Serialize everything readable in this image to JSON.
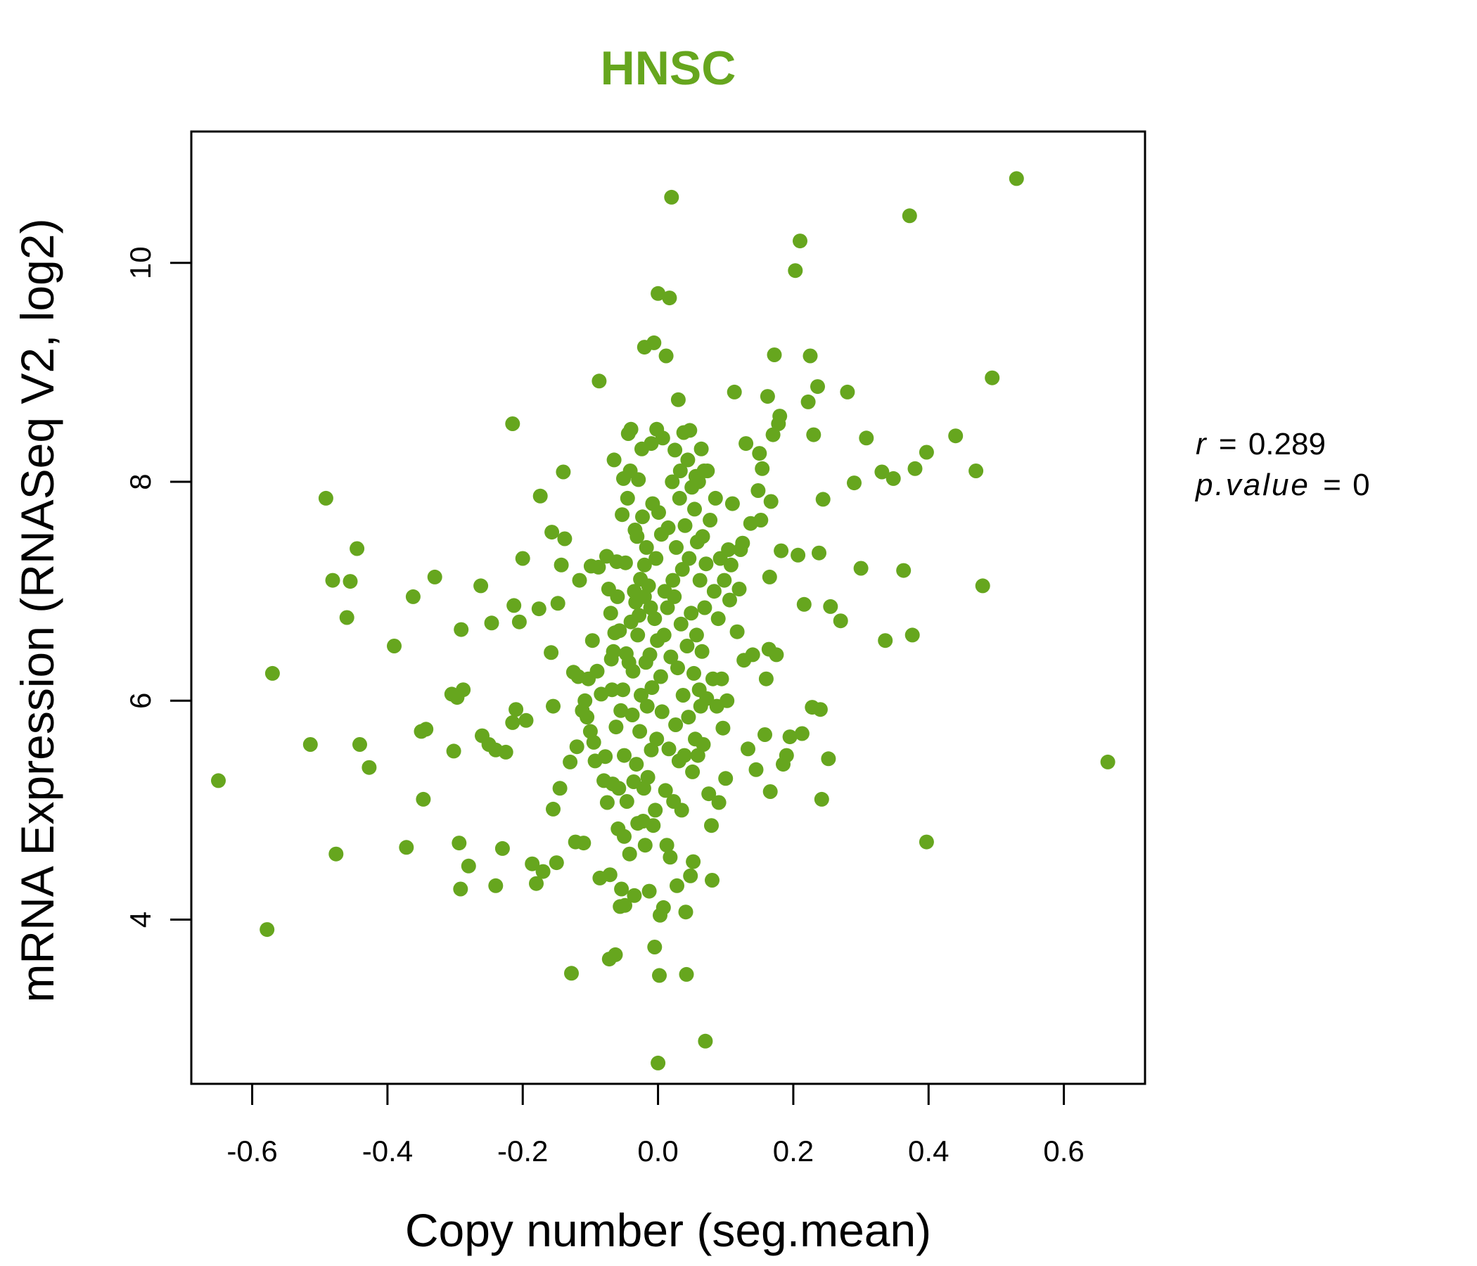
{
  "colors": {
    "accent": "#66A61E",
    "axis": "#000000",
    "background": "#ffffff"
  },
  "stats": {
    "r_label": "r",
    "r_value": "0.289",
    "p_label": "p.value",
    "p_value": "0",
    "eq": "="
  },
  "chart_data": {
    "type": "scatter",
    "title": "HNSC",
    "xlabel": "Copy number (seg.mean)",
    "ylabel": "mRNA Expression (RNASeq V2, log2)",
    "xlim": [
      -0.69,
      0.72
    ],
    "ylim": [
      2.5,
      11.2
    ],
    "xticks": [
      -0.6,
      -0.4,
      -0.2,
      0.0,
      0.2,
      0.4,
      0.6
    ],
    "xtick_labels": [
      "-0.6",
      "-0.4",
      "-0.2",
      "0.0",
      "0.2",
      "0.4",
      "0.6"
    ],
    "yticks": [
      4,
      6,
      8,
      10
    ],
    "ytick_labels": [
      "4",
      "6",
      "8",
      "10"
    ],
    "grid": false,
    "points": [
      [
        -0.65,
        5.27
      ],
      [
        -0.578,
        3.91
      ],
      [
        -0.57,
        6.25
      ],
      [
        -0.514,
        5.6
      ],
      [
        -0.491,
        7.85
      ],
      [
        -0.481,
        7.1
      ],
      [
        -0.476,
        4.6
      ],
      [
        -0.46,
        6.76
      ],
      [
        -0.455,
        7.09
      ],
      [
        -0.445,
        7.39
      ],
      [
        -0.441,
        5.6
      ],
      [
        -0.427,
        5.39
      ],
      [
        -0.39,
        6.5
      ],
      [
        -0.372,
        4.66
      ],
      [
        -0.362,
        6.95
      ],
      [
        -0.35,
        5.72
      ],
      [
        -0.347,
        5.1
      ],
      [
        -0.343,
        5.74
      ],
      [
        -0.33,
        7.13
      ],
      [
        -0.305,
        6.06
      ],
      [
        -0.302,
        5.54
      ],
      [
        -0.297,
        6.03
      ],
      [
        -0.294,
        4.7
      ],
      [
        -0.292,
        4.28
      ],
      [
        -0.291,
        6.65
      ],
      [
        -0.288,
        6.1
      ],
      [
        -0.28,
        4.49
      ],
      [
        -0.262,
        7.05
      ],
      [
        -0.26,
        5.68
      ],
      [
        -0.25,
        5.6
      ],
      [
        -0.246,
        6.71
      ],
      [
        -0.24,
        5.55
      ],
      [
        -0.24,
        4.31
      ],
      [
        -0.23,
        4.65
      ],
      [
        -0.225,
        5.53
      ],
      [
        -0.215,
        8.53
      ],
      [
        -0.215,
        5.8
      ],
      [
        -0.213,
        6.87
      ],
      [
        -0.21,
        5.92
      ],
      [
        -0.205,
        6.72
      ],
      [
        -0.2,
        7.3
      ],
      [
        -0.195,
        5.82
      ],
      [
        -0.186,
        4.51
      ],
      [
        -0.18,
        4.33
      ],
      [
        -0.176,
        6.84
      ],
      [
        -0.174,
        7.87
      ],
      [
        -0.17,
        4.44
      ],
      [
        -0.158,
        6.44
      ],
      [
        -0.157,
        7.54
      ],
      [
        -0.155,
        5.95
      ],
      [
        -0.155,
        5.01
      ],
      [
        -0.15,
        4.52
      ],
      [
        -0.148,
        6.89
      ],
      [
        -0.145,
        5.2
      ],
      [
        -0.143,
        7.24
      ],
      [
        -0.14,
        8.09
      ],
      [
        -0.138,
        7.48
      ],
      [
        -0.13,
        5.44
      ],
      [
        -0.128,
        3.51
      ],
      [
        -0.125,
        6.26
      ],
      [
        -0.122,
        4.71
      ],
      [
        -0.12,
        5.58
      ],
      [
        -0.118,
        6.22
      ],
      [
        -0.116,
        7.1
      ],
      [
        -0.112,
        5.91
      ],
      [
        -0.11,
        4.7
      ],
      [
        -0.108,
        6.0
      ],
      [
        -0.105,
        5.85
      ],
      [
        -0.103,
        6.2
      ],
      [
        -0.1,
        5.72
      ],
      [
        -0.099,
        7.23
      ],
      [
        -0.097,
        6.55
      ],
      [
        -0.095,
        5.62
      ],
      [
        -0.093,
        5.45
      ],
      [
        -0.09,
        6.27
      ],
      [
        -0.088,
        7.22
      ],
      [
        -0.087,
        8.92
      ],
      [
        -0.086,
        4.38
      ],
      [
        -0.084,
        6.06
      ],
      [
        -0.08,
        5.27
      ],
      [
        -0.078,
        5.49
      ],
      [
        -0.076,
        7.32
      ],
      [
        -0.075,
        5.07
      ],
      [
        -0.073,
        7.02
      ],
      [
        -0.072,
        3.64
      ],
      [
        -0.071,
        4.41
      ],
      [
        -0.07,
        6.8
      ],
      [
        -0.069,
        6.38
      ],
      [
        -0.068,
        6.1
      ],
      [
        -0.067,
        5.24
      ],
      [
        -0.066,
        6.45
      ],
      [
        -0.065,
        8.2
      ],
      [
        -0.064,
        6.62
      ],
      [
        -0.063,
        3.68
      ],
      [
        -0.062,
        5.76
      ],
      [
        -0.061,
        7.27
      ],
      [
        -0.06,
        6.95
      ],
      [
        -0.059,
        4.83
      ],
      [
        -0.058,
        5.2
      ],
      [
        -0.057,
        6.64
      ],
      [
        -0.056,
        4.12
      ],
      [
        -0.055,
        5.91
      ],
      [
        -0.054,
        4.28
      ],
      [
        -0.053,
        7.7
      ],
      [
        -0.052,
        6.1
      ],
      [
        -0.051,
        8.03
      ],
      [
        -0.05,
        5.5
      ],
      [
        -0.05,
        4.76
      ],
      [
        -0.049,
        4.13
      ],
      [
        -0.048,
        7.26
      ],
      [
        -0.047,
        6.43
      ],
      [
        -0.046,
        5.08
      ],
      [
        -0.045,
        7.85
      ],
      [
        -0.044,
        8.44
      ],
      [
        -0.043,
        6.35
      ],
      [
        -0.042,
        4.6
      ],
      [
        -0.041,
        8.1
      ],
      [
        -0.04,
        8.48
      ],
      [
        -0.04,
        6.72
      ],
      [
        -0.038,
        5.87
      ],
      [
        -0.037,
        6.27
      ],
      [
        -0.036,
        5.26
      ],
      [
        -0.035,
        4.22
      ],
      [
        -0.035,
        7.0
      ],
      [
        -0.034,
        7.56
      ],
      [
        -0.033,
        6.9
      ],
      [
        -0.032,
        5.42
      ],
      [
        -0.031,
        7.5
      ],
      [
        -0.03,
        6.6
      ],
      [
        -0.03,
        4.88
      ],
      [
        -0.029,
        8.02
      ],
      [
        -0.028,
        6.78
      ],
      [
        -0.027,
        5.72
      ],
      [
        -0.026,
        7.11
      ],
      [
        -0.025,
        6.05
      ],
      [
        -0.024,
        8.3
      ],
      [
        -0.023,
        7.68
      ],
      [
        -0.022,
        4.9
      ],
      [
        -0.021,
        5.2
      ],
      [
        -0.02,
        9.23
      ],
      [
        -0.02,
        7.24
      ],
      [
        -0.02,
        6.95
      ],
      [
        -0.019,
        4.68
      ],
      [
        -0.018,
        6.35
      ],
      [
        -0.017,
        7.4
      ],
      [
        -0.016,
        5.95
      ],
      [
        -0.015,
        5.3
      ],
      [
        -0.014,
        7.05
      ],
      [
        -0.013,
        4.26
      ],
      [
        -0.012,
        6.42
      ],
      [
        -0.011,
        6.85
      ],
      [
        -0.01,
        8.35
      ],
      [
        -0.01,
        5.55
      ],
      [
        -0.009,
        6.12
      ],
      [
        -0.008,
        7.8
      ],
      [
        -0.007,
        4.86
      ],
      [
        -0.006,
        9.27
      ],
      [
        -0.005,
        6.75
      ],
      [
        -0.005,
        3.75
      ],
      [
        -0.004,
        5.0
      ],
      [
        -0.003,
        7.3
      ],
      [
        -0.002,
        8.48
      ],
      [
        -0.002,
        5.65
      ],
      [
        -0.001,
        6.55
      ],
      [
        0.0,
        9.72
      ],
      [
        0.0,
        2.69
      ],
      [
        0.001,
        7.72
      ],
      [
        0.002,
        3.49
      ],
      [
        0.003,
        4.04
      ],
      [
        0.004,
        6.22
      ],
      [
        0.005,
        7.52
      ],
      [
        0.006,
        5.9
      ],
      [
        0.007,
        8.4
      ],
      [
        0.008,
        4.11
      ],
      [
        0.009,
        6.6
      ],
      [
        0.01,
        7.0
      ],
      [
        0.011,
        5.18
      ],
      [
        0.012,
        9.15
      ],
      [
        0.013,
        4.68
      ],
      [
        0.014,
        6.85
      ],
      [
        0.015,
        7.58
      ],
      [
        0.016,
        5.56
      ],
      [
        0.017,
        9.68
      ],
      [
        0.018,
        4.57
      ],
      [
        0.019,
        6.4
      ],
      [
        0.02,
        10.6
      ],
      [
        0.021,
        8.0
      ],
      [
        0.022,
        7.1
      ],
      [
        0.023,
        5.08
      ],
      [
        0.024,
        6.95
      ],
      [
        0.025,
        8.29
      ],
      [
        0.026,
        5.78
      ],
      [
        0.027,
        7.4
      ],
      [
        0.028,
        4.31
      ],
      [
        0.029,
        6.3
      ],
      [
        0.03,
        8.75
      ],
      [
        0.031,
        5.45
      ],
      [
        0.032,
        7.85
      ],
      [
        0.033,
        8.1
      ],
      [
        0.034,
        6.7
      ],
      [
        0.035,
        5.0
      ],
      [
        0.036,
        7.2
      ],
      [
        0.037,
        6.05
      ],
      [
        0.038,
        8.45
      ],
      [
        0.039,
        5.5
      ],
      [
        0.04,
        7.6
      ],
      [
        0.041,
        4.07
      ],
      [
        0.042,
        3.5
      ],
      [
        0.043,
        6.5
      ],
      [
        0.044,
        8.2
      ],
      [
        0.045,
        5.85
      ],
      [
        0.046,
        7.3
      ],
      [
        0.047,
        8.47
      ],
      [
        0.048,
        4.4
      ],
      [
        0.049,
        6.8
      ],
      [
        0.05,
        7.95
      ],
      [
        0.051,
        5.35
      ],
      [
        0.052,
        4.53
      ],
      [
        0.053,
        6.25
      ],
      [
        0.054,
        7.75
      ],
      [
        0.055,
        5.65
      ],
      [
        0.056,
        8.05
      ],
      [
        0.057,
        6.6
      ],
      [
        0.058,
        7.45
      ],
      [
        0.059,
        5.5
      ],
      [
        0.06,
        8.0
      ],
      [
        0.061,
        6.1
      ],
      [
        0.062,
        7.1
      ],
      [
        0.063,
        5.95
      ],
      [
        0.064,
        8.3
      ],
      [
        0.065,
        6.45
      ],
      [
        0.066,
        7.5
      ],
      [
        0.067,
        5.6
      ],
      [
        0.068,
        8.1
      ],
      [
        0.069,
        6.85
      ],
      [
        0.07,
        2.89
      ],
      [
        0.071,
        7.25
      ],
      [
        0.072,
        6.02
      ],
      [
        0.073,
        8.1
      ],
      [
        0.075,
        5.15
      ],
      [
        0.077,
        7.65
      ],
      [
        0.079,
        4.86
      ],
      [
        0.08,
        4.36
      ],
      [
        0.081,
        6.2
      ],
      [
        0.083,
        7.0
      ],
      [
        0.085,
        7.85
      ],
      [
        0.087,
        5.95
      ],
      [
        0.089,
        6.75
      ],
      [
        0.09,
        5.07
      ],
      [
        0.092,
        7.3
      ],
      [
        0.094,
        6.2
      ],
      [
        0.096,
        5.75
      ],
      [
        0.098,
        7.1
      ],
      [
        0.1,
        5.29
      ],
      [
        0.102,
        6.0
      ],
      [
        0.104,
        7.38
      ],
      [
        0.106,
        6.92
      ],
      [
        0.108,
        7.24
      ],
      [
        0.11,
        7.8
      ],
      [
        0.113,
        8.82
      ],
      [
        0.117,
        6.63
      ],
      [
        0.12,
        7.02
      ],
      [
        0.122,
        7.38
      ],
      [
        0.125,
        7.44
      ],
      [
        0.127,
        6.37
      ],
      [
        0.13,
        8.35
      ],
      [
        0.133,
        5.56
      ],
      [
        0.137,
        7.62
      ],
      [
        0.14,
        6.42
      ],
      [
        0.145,
        5.37
      ],
      [
        0.148,
        7.92
      ],
      [
        0.15,
        8.26
      ],
      [
        0.152,
        7.65
      ],
      [
        0.154,
        8.12
      ],
      [
        0.158,
        5.69
      ],
      [
        0.16,
        6.2
      ],
      [
        0.162,
        8.78
      ],
      [
        0.164,
        6.47
      ],
      [
        0.165,
        7.13
      ],
      [
        0.166,
        5.17
      ],
      [
        0.167,
        7.82
      ],
      [
        0.17,
        8.43
      ],
      [
        0.172,
        9.16
      ],
      [
        0.175,
        6.42
      ],
      [
        0.178,
        8.53
      ],
      [
        0.18,
        8.6
      ],
      [
        0.182,
        7.37
      ],
      [
        0.185,
        5.42
      ],
      [
        0.19,
        5.5
      ],
      [
        0.195,
        5.67
      ],
      [
        0.203,
        9.93
      ],
      [
        0.207,
        7.33
      ],
      [
        0.21,
        10.2
      ],
      [
        0.213,
        5.7
      ],
      [
        0.216,
        6.88
      ],
      [
        0.222,
        8.73
      ],
      [
        0.225,
        9.15
      ],
      [
        0.228,
        5.94
      ],
      [
        0.23,
        8.43
      ],
      [
        0.236,
        8.87
      ],
      [
        0.238,
        7.35
      ],
      [
        0.24,
        5.92
      ],
      [
        0.242,
        5.1
      ],
      [
        0.244,
        7.84
      ],
      [
        0.252,
        5.47
      ],
      [
        0.255,
        6.86
      ],
      [
        0.27,
        6.73
      ],
      [
        0.28,
        8.82
      ],
      [
        0.29,
        7.99
      ],
      [
        0.3,
        7.21
      ],
      [
        0.308,
        8.4
      ],
      [
        0.331,
        8.09
      ],
      [
        0.336,
        6.55
      ],
      [
        0.348,
        8.03
      ],
      [
        0.363,
        7.19
      ],
      [
        0.372,
        10.43
      ],
      [
        0.376,
        6.6
      ],
      [
        0.38,
        8.12
      ],
      [
        0.397,
        4.71
      ],
      [
        0.397,
        8.27
      ],
      [
        0.44,
        8.42
      ],
      [
        0.47,
        8.1
      ],
      [
        0.48,
        7.05
      ],
      [
        0.494,
        8.95
      ],
      [
        0.53,
        10.77
      ],
      [
        0.665,
        5.44
      ]
    ]
  }
}
